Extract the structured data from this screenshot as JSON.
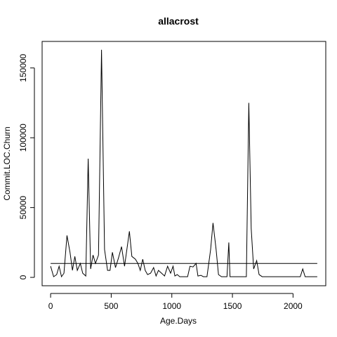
{
  "chart_data": {
    "type": "line",
    "title": "allacrost",
    "xlabel": "Age.Days",
    "ylabel": "Commit.LOC.Churn",
    "xlim": [
      -70,
      2270
    ],
    "ylim": [
      -6000,
      169000
    ],
    "x_ticks": [
      0,
      500,
      1000,
      1500,
      2000
    ],
    "x_tick_labels": [
      "0",
      "500",
      "1000",
      "1500",
      "2000"
    ],
    "y_ticks": [
      0,
      50000,
      100000,
      150000
    ],
    "y_tick_labels": [
      "0",
      "50000",
      "100000",
      "150000"
    ],
    "grid": false,
    "series": [
      {
        "name": "",
        "color": "#000000",
        "points": [
          [
            0,
            8000
          ],
          [
            25,
            500
          ],
          [
            50,
            2000
          ],
          [
            70,
            8000
          ],
          [
            90,
            500
          ],
          [
            110,
            3000
          ],
          [
            135,
            30000
          ],
          [
            160,
            18000
          ],
          [
            180,
            5000
          ],
          [
            200,
            15000
          ],
          [
            220,
            5000
          ],
          [
            245,
            10000
          ],
          [
            265,
            3000
          ],
          [
            290,
            1000
          ],
          [
            310,
            85000
          ],
          [
            330,
            6000
          ],
          [
            350,
            16000
          ],
          [
            370,
            10000
          ],
          [
            395,
            16000
          ],
          [
            420,
            163000
          ],
          [
            445,
            20000
          ],
          [
            470,
            5000
          ],
          [
            490,
            5000
          ],
          [
            510,
            18000
          ],
          [
            535,
            7000
          ],
          [
            560,
            14000
          ],
          [
            585,
            22000
          ],
          [
            610,
            8000
          ],
          [
            650,
            33000
          ],
          [
            670,
            15000
          ],
          [
            700,
            13000
          ],
          [
            720,
            10000
          ],
          [
            740,
            5000
          ],
          [
            760,
            13000
          ],
          [
            780,
            5000
          ],
          [
            800,
            2000
          ],
          [
            825,
            3000
          ],
          [
            850,
            7000
          ],
          [
            870,
            1000
          ],
          [
            890,
            5000
          ],
          [
            915,
            3000
          ],
          [
            940,
            1000
          ],
          [
            965,
            8000
          ],
          [
            990,
            3000
          ],
          [
            1010,
            8000
          ],
          [
            1025,
            1000
          ],
          [
            1045,
            2000
          ],
          [
            1065,
            500
          ],
          [
            1100,
            500
          ],
          [
            1130,
            500
          ],
          [
            1150,
            8000
          ],
          [
            1175,
            7500
          ],
          [
            1200,
            10000
          ],
          [
            1215,
            1000
          ],
          [
            1240,
            1500
          ],
          [
            1260,
            500
          ],
          [
            1290,
            500
          ],
          [
            1320,
            20000
          ],
          [
            1340,
            39000
          ],
          [
            1365,
            20000
          ],
          [
            1385,
            2000
          ],
          [
            1410,
            500
          ],
          [
            1430,
            500
          ],
          [
            1455,
            500
          ],
          [
            1470,
            25000
          ],
          [
            1480,
            500
          ],
          [
            1500,
            500
          ],
          [
            1530,
            500
          ],
          [
            1560,
            500
          ],
          [
            1590,
            500
          ],
          [
            1615,
            500
          ],
          [
            1635,
            125000
          ],
          [
            1655,
            35000
          ],
          [
            1675,
            6000
          ],
          [
            1700,
            12000
          ],
          [
            1720,
            2000
          ],
          [
            1745,
            500
          ],
          [
            1800,
            500
          ],
          [
            1900,
            500
          ],
          [
            2000,
            500
          ],
          [
            2060,
            500
          ],
          [
            2080,
            6000
          ],
          [
            2100,
            500
          ],
          [
            2150,
            500
          ],
          [
            2200,
            500
          ]
        ]
      },
      {
        "name": "",
        "color": "#000000",
        "points": [
          [
            0,
            10000
          ],
          [
            2200,
            10000
          ]
        ]
      }
    ]
  }
}
